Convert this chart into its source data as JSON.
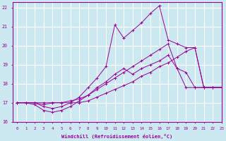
{
  "xlabel": "Windchill (Refroidissement éolien,°C)",
  "background_color": "#cce8f0",
  "line_color": "#990099",
  "grid_color": "#ffffff",
  "xlim": [
    -0.5,
    23
  ],
  "ylim": [
    16,
    22.3
  ],
  "yticks": [
    16,
    17,
    18,
    19,
    20,
    21,
    22
  ],
  "xticks": [
    0,
    1,
    2,
    3,
    4,
    5,
    6,
    7,
    8,
    9,
    10,
    11,
    12,
    13,
    14,
    15,
    16,
    17,
    18,
    19,
    20,
    21,
    22,
    23
  ],
  "lines": [
    [
      17.0,
      17.0,
      17.0,
      17.0,
      17.0,
      17.0,
      17.0,
      17.0,
      17.1,
      17.3,
      17.5,
      17.7,
      17.9,
      18.1,
      18.4,
      18.6,
      18.9,
      19.1,
      19.4,
      19.7,
      19.9,
      17.8,
      17.8,
      17.8
    ],
    [
      17.0,
      17.0,
      17.0,
      16.9,
      17.0,
      17.0,
      17.1,
      17.2,
      17.4,
      17.7,
      18.0,
      18.3,
      18.6,
      18.9,
      19.2,
      19.5,
      19.8,
      20.1,
      18.8,
      17.8,
      17.8,
      17.8,
      17.8,
      17.8
    ],
    [
      17.0,
      17.0,
      16.9,
      16.6,
      16.5,
      16.6,
      16.8,
      17.1,
      17.4,
      17.8,
      18.1,
      18.5,
      18.8,
      18.5,
      18.8,
      19.0,
      19.2,
      19.5,
      18.8,
      18.6,
      17.8,
      17.8,
      17.8,
      17.8
    ],
    [
      17.0,
      17.0,
      17.0,
      16.8,
      16.7,
      16.8,
      17.0,
      17.3,
      17.8,
      18.3,
      18.9,
      21.1,
      20.4,
      20.8,
      21.2,
      21.7,
      22.1,
      20.3,
      20.1,
      19.9,
      19.9,
      17.8,
      17.8,
      17.8
    ]
  ]
}
